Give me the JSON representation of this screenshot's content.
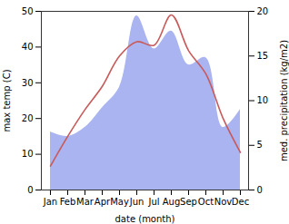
{
  "chart_data": {
    "type": "line",
    "x_label": "date (month)",
    "y_label": "max temp (C)",
    "y2_label": "med. precipitation (kg/m2)",
    "categories": [
      "Jan",
      "Feb",
      "Mar",
      "Apr",
      "May",
      "Jun",
      "Jul",
      "Aug",
      "Sep",
      "Oct",
      "Nov",
      "Dec"
    ],
    "series": [
      {
        "name": "med. precipitation",
        "type": "area",
        "axis": "y2",
        "color": "#aab4f0",
        "values": [
          6.5,
          6.0,
          7.0,
          9.2,
          11.5,
          19.5,
          15.8,
          17.8,
          14.0,
          14.8,
          7.0,
          9.0
        ]
      },
      {
        "name": "max temp",
        "type": "line",
        "axis": "y",
        "color": "#c85a5a",
        "values": [
          6.7,
          15.0,
          22.5,
          29.0,
          37.5,
          41.5,
          40.5,
          49.0,
          39.0,
          32.5,
          20.0,
          10.5
        ]
      }
    ],
    "ylim": [
      0,
      50
    ],
    "yticks": [
      0,
      10,
      20,
      30,
      40,
      50
    ],
    "y2lim": [
      0,
      20
    ],
    "y2ticks": [
      0,
      5,
      10,
      15,
      20
    ],
    "grid": false
  }
}
